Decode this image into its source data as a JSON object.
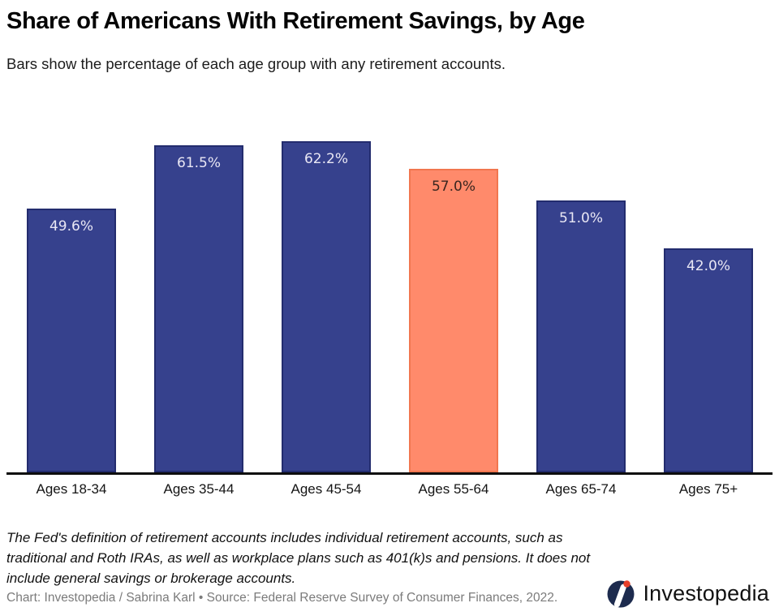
{
  "header": {
    "title": "Share of Americans With Retirement Savings, by Age",
    "subtitle": "Bars show the percentage of each age group with any retirement accounts."
  },
  "chart_data": {
    "type": "bar",
    "title": "Share of Americans With Retirement Savings, by Age",
    "subtitle": "Bars show the percentage of each age group with any retirement accounts.",
    "categories": [
      "Ages 18-34",
      "Ages 35-44",
      "Ages 45-54",
      "Ages 55-64",
      "Ages 65-74",
      "Ages 75+"
    ],
    "values": [
      49.6,
      61.5,
      62.2,
      57.0,
      51.0,
      42.0
    ],
    "value_labels": [
      "49.6%",
      "61.5%",
      "62.2%",
      "57.0%",
      "51.0%",
      "42.0%"
    ],
    "highlight_index": 3,
    "xlabel": "",
    "ylabel": "",
    "ylim": [
      0,
      65
    ],
    "grid": false,
    "legend": false,
    "colors": {
      "bar": "#36418d",
      "bar_border": "#232c6e",
      "highlight_bar": "#ff8a6b",
      "highlight_border": "#f1764f",
      "label_on_bar": "#e9e7f4",
      "label_on_highlight": "#3a2620",
      "axis_line": "#0d0d0d"
    }
  },
  "footnote": {
    "lines": [
      "The Fed's definition of retirement accounts includes individual retirement accounts, such as",
      "traditional and Roth IRAs, as well as workplace plans such as 401(k)s and pensions. It does not",
      "include general savings or brokerage accounts."
    ]
  },
  "footer": {
    "credit": "Chart: Investopedia / Sabrina Karl • Source: Federal Reserve Survey of Consumer Finances, 2022.",
    "logo_text": "Investopedia"
  }
}
